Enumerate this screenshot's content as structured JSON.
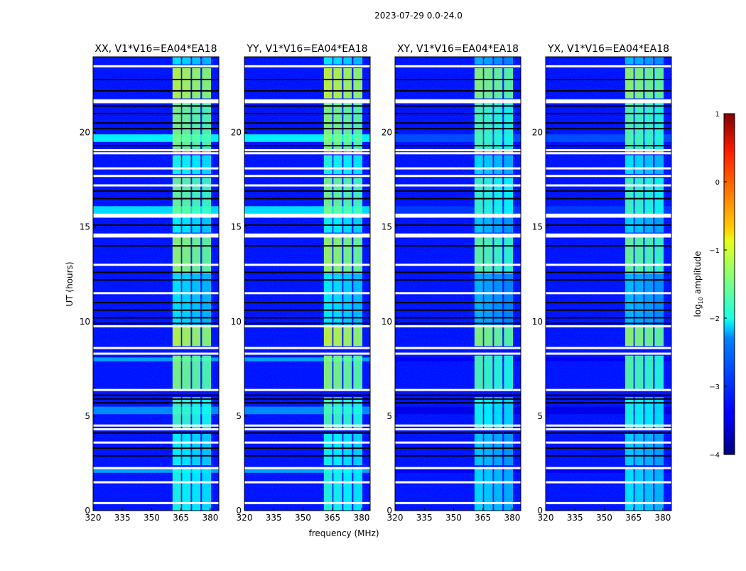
{
  "chart_data": {
    "type": "heatmap",
    "title": "2023-07-29 0.0-24.0",
    "xlabel": "frequency (MHz)",
    "ylabel": "UT (hours)",
    "xlim": [
      320,
      384.4
    ],
    "ylim": [
      0,
      24
    ],
    "xticks": [
      "320",
      "335",
      "350",
      "365",
      "380"
    ],
    "xtick_values": [
      320,
      335,
      350,
      365,
      380
    ],
    "yticks": [
      "0",
      "5",
      "10",
      "15",
      "20"
    ],
    "ytick_values": [
      0,
      5,
      10,
      15,
      20
    ],
    "colorbar": {
      "label_main": "log",
      "label_sub": "10",
      "label_rest": " amplitude",
      "range": [
        -4,
        1
      ],
      "ticks": [
        "1",
        "0",
        "−1",
        "−2",
        "−3",
        "−4"
      ],
      "tick_values": [
        1,
        0,
        -1,
        -2,
        -3,
        -4
      ],
      "colormap": "jet"
    },
    "background_level": -3.3,
    "rfi_channels_mhz": [
      [
        360.7,
        365
      ],
      [
        365.6,
        370
      ],
      [
        370.7,
        375
      ],
      [
        375.8,
        380.4
      ]
    ],
    "rfi_segments": [
      {
        "t0": 0.0,
        "t1": 2.2,
        "level": -2.0
      },
      {
        "t0": 2.4,
        "t1": 4.1,
        "level": -2.1
      },
      {
        "t0": 4.3,
        "t1": 6.0,
        "level": -1.8
      },
      {
        "t0": 6.4,
        "t1": 8.2,
        "level": -1.5
      },
      {
        "t0": 8.7,
        "t1": 9.7,
        "level": -1.2
      },
      {
        "t0": 9.8,
        "t1": 12.5,
        "level": -2.2
      },
      {
        "t0": 12.5,
        "t1": 14.5,
        "level": -1.4
      },
      {
        "t0": 14.7,
        "t1": 15.6,
        "level": -2.1
      },
      {
        "t0": 15.7,
        "t1": 17.6,
        "level": -1.6
      },
      {
        "t0": 17.8,
        "t1": 18.8,
        "level": -2.0
      },
      {
        "t0": 18.85,
        "t1": 19.05,
        "level": -0.2
      },
      {
        "t0": 19.1,
        "t1": 21.6,
        "level": -1.5
      },
      {
        "t0": 21.8,
        "t1": 23.4,
        "level": -1.2
      },
      {
        "t0": 23.6,
        "t1": 24.0,
        "level": -2.2
      }
    ],
    "broadband_segments": [
      {
        "t0": 19.5,
        "t1": 19.9,
        "level": -2.2
      },
      {
        "t0": 15.7,
        "t1": 16.1,
        "level": -2.3
      },
      {
        "t0": 5.1,
        "t1": 5.5,
        "level": -2.7
      },
      {
        "t0": 7.9,
        "t1": 8.1,
        "level": -2.6
      },
      {
        "t0": 2.0,
        "t1": 2.2,
        "level": -2.6
      }
    ],
    "flagged_hours": [
      23.5,
      21.7,
      21.6,
      19.06,
      18.9,
      18.1,
      17.7,
      17.2,
      15.65,
      15.55,
      14.6,
      14.5,
      13.0,
      11.5,
      9.75,
      8.6,
      8.3,
      6.38,
      4.5,
      4.3,
      3.6,
      2.25,
      1.5,
      0.4
    ],
    "gap_hours": [
      22.8,
      22.2,
      21.4,
      21.0,
      20.5,
      20.2,
      19.3,
      16.9,
      16.5,
      15.1,
      14.0,
      12.6,
      12.2,
      11.0,
      10.6,
      10.2,
      9.9,
      6.1,
      5.9,
      5.7,
      4.1,
      3.3,
      2.9
    ],
    "panels": [
      {
        "title": "XX, V1*V16=EA04*EA18",
        "level_offset": 0.0,
        "broadband_offset": 0.0
      },
      {
        "title": "YY, V1*V16=EA04*EA18",
        "level_offset": 0.05,
        "broadband_offset": 0.0
      },
      {
        "title": "XY, V1*V16=EA04*EA18",
        "level_offset": -0.25,
        "broadband_offset": -0.8
      },
      {
        "title": "YX, V1*V16=EA04*EA18",
        "level_offset": -0.2,
        "broadband_offset": -0.8
      }
    ]
  }
}
